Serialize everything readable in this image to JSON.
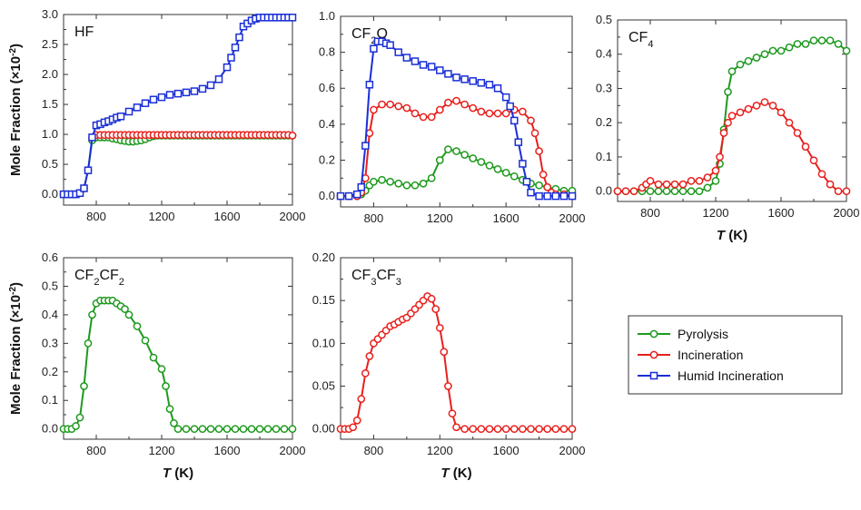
{
  "colors": {
    "pyrolysis": "#1e9a1e",
    "incineration": "#e8201d",
    "humid": "#1a2fd6"
  },
  "labels": {
    "ylabel": "Mole Fraction (×10",
    "ylabel_sup": "-2",
    "ylabel_end": ")",
    "xlabel_T": "T",
    "xlabel_K": " (K)"
  },
  "legend": {
    "items": [
      {
        "key": "pyrolysis",
        "label": "Pyrolysis",
        "marker": "circle"
      },
      {
        "key": "incineration",
        "label": "Incineration",
        "marker": "circle"
      },
      {
        "key": "humid",
        "label": "Humid Incineration",
        "marker": "square"
      }
    ]
  },
  "chart_data": [
    {
      "type": "line",
      "title": "HF",
      "title_parts": [
        [
          "HF",
          ""
        ]
      ],
      "xlim": [
        600,
        2000
      ],
      "ylim": [
        0,
        3.0
      ],
      "xticks": [
        "800",
        "1200",
        "1600",
        "2000"
      ],
      "yticks": [
        "0.0",
        "0.5",
        "1.0",
        "1.5",
        "2.0",
        "2.5",
        "3.0"
      ],
      "xlabel_shown": false,
      "ylabel_shown": true,
      "grid": false,
      "series": [
        {
          "name": "Pyrolysis",
          "key": "pyrolysis",
          "marker": "circle",
          "x": [
            600,
            625,
            650,
            675,
            700,
            725,
            750,
            775,
            800,
            825,
            850,
            875,
            900,
            925,
            950,
            975,
            1000,
            1025,
            1050,
            1075,
            1100,
            1125,
            1150,
            1175,
            1200,
            1225,
            1250,
            1275,
            1300,
            1325,
            1350,
            1375,
            1400,
            1425,
            1450,
            1475,
            1500,
            1525,
            1550,
            1575,
            1600,
            1625,
            1650,
            1675,
            1700,
            1725,
            1750,
            1775,
            1800,
            1825,
            1850,
            1875,
            1900,
            1925,
            1950,
            1975,
            2000
          ],
          "y": [
            0.0,
            0.0,
            0.0,
            0.0,
            0.02,
            0.1,
            0.4,
            0.9,
            0.95,
            0.95,
            0.95,
            0.95,
            0.93,
            0.92,
            0.9,
            0.89,
            0.88,
            0.88,
            0.89,
            0.9,
            0.92,
            0.95,
            0.97,
            0.98,
            0.98,
            0.98,
            0.98,
            0.98,
            0.98,
            0.98,
            0.98,
            0.98,
            0.98,
            0.98,
            0.98,
            0.98,
            0.98,
            0.98,
            0.98,
            0.98,
            0.98,
            0.98,
            0.98,
            0.98,
            0.98,
            0.98,
            0.98,
            0.98,
            0.98,
            0.98,
            0.98,
            0.98,
            0.98,
            0.98,
            0.98,
            0.98,
            0.98
          ]
        },
        {
          "name": "Incineration",
          "key": "incineration",
          "marker": "circle",
          "x": [
            775,
            800,
            825,
            850,
            875,
            900,
            925,
            950,
            975,
            1000,
            1025,
            1050,
            1075,
            1100,
            1125,
            1150,
            1175,
            1200,
            1225,
            1250,
            1275,
            1300,
            1325,
            1350,
            1375,
            1400,
            1425,
            1450,
            1475,
            1500,
            1525,
            1550,
            1575,
            1600,
            1625,
            1650,
            1675,
            1700,
            1725,
            1750,
            1775,
            1800,
            1825,
            1850,
            1875,
            1900,
            1925,
            1950,
            1975,
            2000
          ],
          "y": [
            0.95,
            0.99,
            0.99,
            0.99,
            0.99,
            0.99,
            0.99,
            0.99,
            0.99,
            0.99,
            0.99,
            0.99,
            0.99,
            0.99,
            0.99,
            0.99,
            0.99,
            0.99,
            0.99,
            0.99,
            0.99,
            0.99,
            0.99,
            0.99,
            0.99,
            0.99,
            0.99,
            0.99,
            0.99,
            0.99,
            0.99,
            0.99,
            0.99,
            0.99,
            0.99,
            0.99,
            0.99,
            0.99,
            0.99,
            0.99,
            0.99,
            0.99,
            0.99,
            0.99,
            0.99,
            0.99,
            0.99,
            0.99,
            0.99,
            0.98
          ]
        },
        {
          "name": "Humid Incineration",
          "key": "humid",
          "marker": "square",
          "x": [
            600,
            625,
            650,
            675,
            700,
            725,
            750,
            775,
            800,
            825,
            850,
            875,
            900,
            925,
            950,
            1000,
            1050,
            1100,
            1150,
            1200,
            1250,
            1300,
            1350,
            1400,
            1450,
            1500,
            1550,
            1600,
            1625,
            1650,
            1675,
            1700,
            1725,
            1750,
            1775,
            1800,
            1825,
            1850,
            1875,
            1900,
            1925,
            1950,
            1975,
            2000
          ],
          "y": [
            0.0,
            0.0,
            0.0,
            0.0,
            0.02,
            0.1,
            0.4,
            0.95,
            1.15,
            1.17,
            1.2,
            1.22,
            1.25,
            1.28,
            1.3,
            1.38,
            1.45,
            1.52,
            1.58,
            1.62,
            1.66,
            1.68,
            1.7,
            1.72,
            1.76,
            1.82,
            1.92,
            2.12,
            2.28,
            2.45,
            2.62,
            2.8,
            2.85,
            2.9,
            2.93,
            2.95,
            2.95,
            2.95,
            2.95,
            2.95,
            2.95,
            2.95,
            2.95,
            2.95
          ]
        }
      ]
    },
    {
      "type": "line",
      "title": "CF2O",
      "title_parts": [
        [
          "CF",
          ""
        ],
        [
          "2",
          "sub"
        ],
        [
          "O",
          ""
        ]
      ],
      "xlim": [
        600,
        2000
      ],
      "ylim": [
        0,
        1.0
      ],
      "xticks": [
        "800",
        "1200",
        "1600",
        "2000"
      ],
      "yticks": [
        "0.0",
        "0.2",
        "0.4",
        "0.6",
        "0.8",
        "1.0"
      ],
      "xlabel_shown": false,
      "ylabel_shown": false,
      "grid": false,
      "series": [
        {
          "name": "Pyrolysis",
          "key": "pyrolysis",
          "marker": "circle",
          "x": [
            600,
            650,
            700,
            725,
            750,
            775,
            800,
            850,
            900,
            950,
            1000,
            1050,
            1100,
            1150,
            1200,
            1250,
            1300,
            1350,
            1400,
            1450,
            1500,
            1550,
            1600,
            1650,
            1700,
            1750,
            1800,
            1850,
            1900,
            1950,
            2000
          ],
          "y": [
            0.0,
            0.0,
            0.0,
            0.01,
            0.03,
            0.06,
            0.08,
            0.09,
            0.08,
            0.07,
            0.06,
            0.06,
            0.07,
            0.1,
            0.2,
            0.26,
            0.25,
            0.23,
            0.21,
            0.19,
            0.17,
            0.15,
            0.13,
            0.11,
            0.09,
            0.07,
            0.06,
            0.05,
            0.04,
            0.03,
            0.03
          ]
        },
        {
          "name": "Incineration",
          "key": "incineration",
          "marker": "circle",
          "x": [
            600,
            650,
            700,
            725,
            750,
            775,
            800,
            850,
            900,
            950,
            1000,
            1050,
            1100,
            1150,
            1200,
            1250,
            1300,
            1350,
            1400,
            1450,
            1500,
            1550,
            1600,
            1650,
            1700,
            1750,
            1775,
            1800,
            1825,
            1850,
            1875,
            1900,
            1950,
            2000
          ],
          "y": [
            0.0,
            0.0,
            0.0,
            0.02,
            0.1,
            0.35,
            0.48,
            0.51,
            0.51,
            0.5,
            0.49,
            0.46,
            0.44,
            0.44,
            0.48,
            0.52,
            0.53,
            0.51,
            0.49,
            0.47,
            0.46,
            0.46,
            0.46,
            0.48,
            0.47,
            0.42,
            0.35,
            0.25,
            0.12,
            0.05,
            0.02,
            0.01,
            0.01,
            0.0
          ]
        },
        {
          "name": "Humid Incineration",
          "key": "humid",
          "marker": "square",
          "x": [
            600,
            650,
            700,
            725,
            750,
            775,
            800,
            825,
            850,
            875,
            900,
            950,
            1000,
            1050,
            1100,
            1150,
            1200,
            1250,
            1300,
            1350,
            1400,
            1450,
            1500,
            1550,
            1600,
            1625,
            1650,
            1675,
            1700,
            1725,
            1750,
            1800,
            1850,
            1900,
            1950,
            2000
          ],
          "y": [
            0.0,
            0.0,
            0.01,
            0.05,
            0.28,
            0.62,
            0.82,
            0.86,
            0.86,
            0.85,
            0.84,
            0.8,
            0.77,
            0.75,
            0.73,
            0.72,
            0.7,
            0.68,
            0.66,
            0.65,
            0.64,
            0.63,
            0.62,
            0.6,
            0.55,
            0.5,
            0.42,
            0.3,
            0.18,
            0.08,
            0.02,
            0.0,
            0.0,
            0.0,
            0.0,
            0.0
          ]
        }
      ]
    },
    {
      "type": "line",
      "title": "CF4",
      "title_parts": [
        [
          "CF",
          ""
        ],
        [
          "4",
          "sub"
        ]
      ],
      "xlim": [
        600,
        2000
      ],
      "ylim": [
        0,
        0.5
      ],
      "xticks": [
        "800",
        "1200",
        "1600",
        "2000"
      ],
      "yticks": [
        "0.0",
        "0.1",
        "0.2",
        "0.3",
        "0.4",
        "0.5"
      ],
      "xlabel_shown": true,
      "ylabel_shown": false,
      "grid": false,
      "series": [
        {
          "name": "Pyrolysis",
          "key": "pyrolysis",
          "marker": "circle",
          "x": [
            600,
            650,
            700,
            750,
            800,
            850,
            900,
            950,
            1000,
            1050,
            1100,
            1150,
            1200,
            1225,
            1250,
            1275,
            1300,
            1350,
            1400,
            1450,
            1500,
            1550,
            1600,
            1650,
            1700,
            1750,
            1800,
            1850,
            1900,
            1950,
            2000
          ],
          "y": [
            0.0,
            0.0,
            0.0,
            0.0,
            0.0,
            0.0,
            0.0,
            0.0,
            0.0,
            0.0,
            0.0,
            0.01,
            0.03,
            0.08,
            0.18,
            0.29,
            0.35,
            0.37,
            0.38,
            0.39,
            0.4,
            0.41,
            0.41,
            0.42,
            0.43,
            0.43,
            0.44,
            0.44,
            0.44,
            0.43,
            0.41
          ]
        },
        {
          "name": "Incineration",
          "key": "incineration",
          "marker": "circle",
          "x": [
            600,
            650,
            700,
            750,
            775,
            800,
            850,
            900,
            950,
            1000,
            1050,
            1100,
            1150,
            1200,
            1225,
            1250,
            1275,
            1300,
            1350,
            1400,
            1450,
            1500,
            1550,
            1600,
            1650,
            1700,
            1750,
            1800,
            1850,
            1900,
            1950,
            2000
          ],
          "y": [
            0.0,
            0.0,
            0.0,
            0.01,
            0.02,
            0.03,
            0.02,
            0.02,
            0.02,
            0.02,
            0.03,
            0.03,
            0.04,
            0.06,
            0.1,
            0.17,
            0.2,
            0.22,
            0.23,
            0.24,
            0.25,
            0.26,
            0.25,
            0.23,
            0.2,
            0.17,
            0.13,
            0.09,
            0.05,
            0.02,
            0.0,
            0.0
          ]
        }
      ]
    },
    {
      "type": "line",
      "title": "CF2CF2",
      "title_parts": [
        [
          "CF",
          ""
        ],
        [
          "2",
          "sub"
        ],
        [
          "CF",
          ""
        ],
        [
          "2",
          "sub"
        ]
      ],
      "xlim": [
        600,
        2000
      ],
      "ylim": [
        0,
        0.6
      ],
      "xticks": [
        "800",
        "1200",
        "1600",
        "2000"
      ],
      "yticks": [
        "0.0",
        "0.1",
        "0.2",
        "0.3",
        "0.4",
        "0.5",
        "0.6"
      ],
      "xlabel_shown": true,
      "ylabel_shown": true,
      "grid": false,
      "series": [
        {
          "name": "Pyrolysis",
          "key": "pyrolysis",
          "marker": "circle",
          "x": [
            600,
            625,
            650,
            675,
            700,
            725,
            750,
            775,
            800,
            825,
            850,
            875,
            900,
            925,
            950,
            975,
            1000,
            1050,
            1100,
            1150,
            1200,
            1225,
            1250,
            1275,
            1300,
            1350,
            1400,
            1450,
            1500,
            1550,
            1600,
            1650,
            1700,
            1750,
            1800,
            1850,
            1900,
            1950,
            2000
          ],
          "y": [
            0.0,
            0.0,
            0.0,
            0.01,
            0.04,
            0.15,
            0.3,
            0.4,
            0.44,
            0.45,
            0.45,
            0.45,
            0.45,
            0.44,
            0.43,
            0.42,
            0.4,
            0.36,
            0.31,
            0.25,
            0.21,
            0.15,
            0.07,
            0.02,
            0.0,
            0.0,
            0.0,
            0.0,
            0.0,
            0.0,
            0.0,
            0.0,
            0.0,
            0.0,
            0.0,
            0.0,
            0.0,
            0.0,
            0.0
          ]
        }
      ]
    },
    {
      "type": "line",
      "title": "CF3CF3",
      "title_parts": [
        [
          "CF",
          ""
        ],
        [
          "3",
          "sub"
        ],
        [
          "CF",
          ""
        ],
        [
          "3",
          "sub"
        ]
      ],
      "xlim": [
        600,
        2000
      ],
      "ylim": [
        0,
        0.2
      ],
      "xticks": [
        "800",
        "1200",
        "1600",
        "2000"
      ],
      "yticks": [
        "0.00",
        "0.05",
        "0.10",
        "0.15",
        "0.20"
      ],
      "xlabel_shown": true,
      "ylabel_shown": false,
      "grid": false,
      "series": [
        {
          "name": "Incineration",
          "key": "incineration",
          "marker": "circle",
          "x": [
            600,
            625,
            650,
            675,
            700,
            725,
            750,
            775,
            800,
            825,
            850,
            875,
            900,
            925,
            950,
            975,
            1000,
            1025,
            1050,
            1075,
            1100,
            1125,
            1150,
            1175,
            1200,
            1225,
            1250,
            1275,
            1300,
            1350,
            1400,
            1450,
            1500,
            1550,
            1600,
            1650,
            1700,
            1750,
            1800,
            1850,
            1900,
            1950,
            2000
          ],
          "y": [
            0.0,
            0.0,
            0.0,
            0.002,
            0.01,
            0.035,
            0.065,
            0.085,
            0.1,
            0.105,
            0.11,
            0.115,
            0.12,
            0.122,
            0.125,
            0.128,
            0.13,
            0.135,
            0.14,
            0.145,
            0.15,
            0.155,
            0.152,
            0.14,
            0.118,
            0.09,
            0.05,
            0.018,
            0.002,
            0.0,
            0.0,
            0.0,
            0.0,
            0.0,
            0.0,
            0.0,
            0.0,
            0.0,
            0.0,
            0.0,
            0.0,
            0.0,
            0.0
          ]
        }
      ]
    }
  ]
}
